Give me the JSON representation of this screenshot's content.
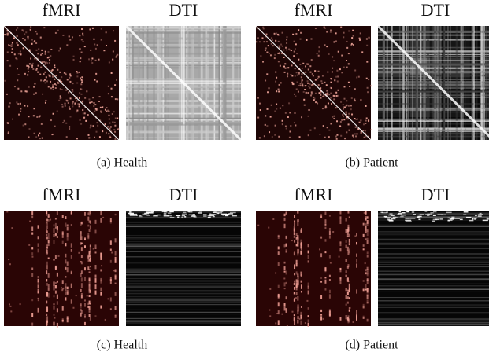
{
  "panels": [
    {
      "images": [
        {
          "title": "fMRI"
        },
        {
          "title": "DTI"
        }
      ],
      "caption": "(a) Health"
    },
    {
      "images": [
        {
          "title": "fMRI"
        },
        {
          "title": "DTI"
        }
      ],
      "caption": "(b) Patient"
    },
    {
      "images": [
        {
          "title": "fMRI"
        },
        {
          "title": "DTI"
        }
      ],
      "caption": "(c) Health"
    },
    {
      "images": [
        {
          "title": "fMRI"
        },
        {
          "title": "DTI"
        }
      ],
      "caption": "(d) Patient"
    }
  ]
}
